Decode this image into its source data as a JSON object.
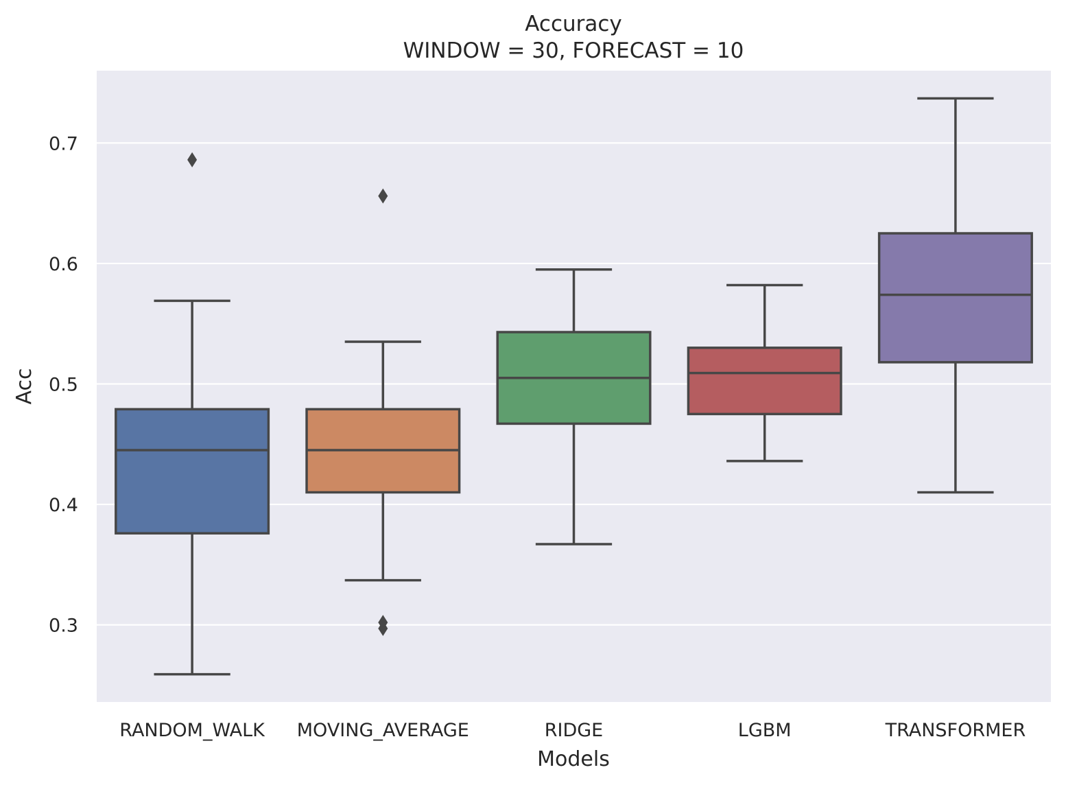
{
  "chart_data": {
    "type": "box",
    "title": "Accuracy",
    "subtitle": "WINDOW = 30, FORECAST = 10",
    "xlabel": "Models",
    "ylabel": "Acc",
    "ylim": [
      0.236,
      0.76
    ],
    "yticks": [
      0.3,
      0.4,
      0.5,
      0.6,
      0.7
    ],
    "ytick_labels": [
      "0.3",
      "0.4",
      "0.5",
      "0.6",
      "0.7"
    ],
    "grid": true,
    "legend": "none",
    "categories": [
      "RANDOM_WALK",
      "MOVING_AVERAGE",
      "RIDGE",
      "LGBM",
      "TRANSFORMER"
    ],
    "boxes": [
      {
        "category": "RANDOM_WALK",
        "whisker_low": 0.259,
        "q1": 0.376,
        "median": 0.445,
        "q3": 0.479,
        "whisker_high": 0.569,
        "outliers": [
          0.686
        ],
        "color": "#5875a4"
      },
      {
        "category": "MOVING_AVERAGE",
        "whisker_low": 0.337,
        "q1": 0.41,
        "median": 0.445,
        "q3": 0.479,
        "whisker_high": 0.535,
        "outliers": [
          0.656,
          0.302,
          0.297
        ],
        "color": "#cc8963"
      },
      {
        "category": "RIDGE",
        "whisker_low": 0.367,
        "q1": 0.467,
        "median": 0.505,
        "q3": 0.543,
        "whisker_high": 0.595,
        "outliers": [],
        "color": "#5f9e6e"
      },
      {
        "category": "LGBM",
        "whisker_low": 0.436,
        "q1": 0.475,
        "median": 0.509,
        "q3": 0.53,
        "whisker_high": 0.582,
        "outliers": [],
        "color": "#b55d60"
      },
      {
        "category": "TRANSFORMER",
        "whisker_low": 0.41,
        "q1": 0.518,
        "median": 0.574,
        "q3": 0.625,
        "whisker_high": 0.737,
        "outliers": [],
        "color": "#857aab"
      }
    ],
    "line_color": "#474747",
    "background_color": "#eaeaf2",
    "grid_color": "#ffffff"
  }
}
